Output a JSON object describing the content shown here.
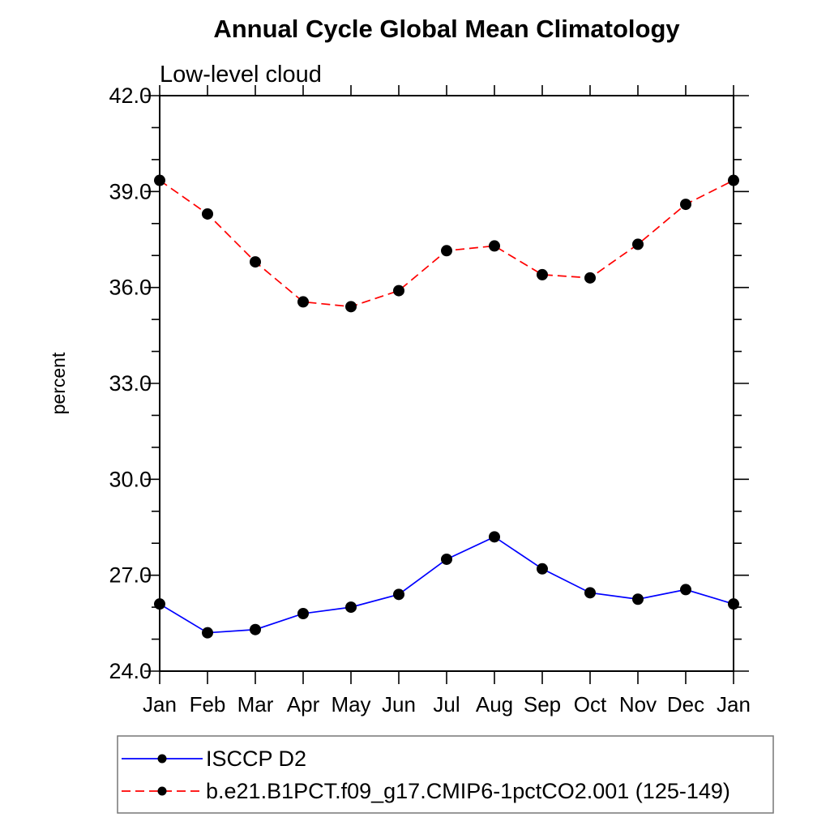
{
  "chart_data": {
    "type": "line",
    "title": "Annual Cycle Global Mean Climatology",
    "subtitle": "Low-level cloud",
    "ylabel": "percent",
    "categories": [
      "Jan",
      "Feb",
      "Mar",
      "Apr",
      "May",
      "Jun",
      "Jul",
      "Aug",
      "Sep",
      "Oct",
      "Nov",
      "Dec",
      "Jan"
    ],
    "ylim": [
      24.0,
      42.0
    ],
    "ytick_major_interval": 3.0,
    "ytick_minor_interval": 1.0,
    "ytick_labels": [
      "24.0",
      "27.0",
      "30.0",
      "33.0",
      "36.0",
      "39.0",
      "42.0"
    ],
    "grid": false,
    "legend_position": "bottom-left",
    "marker": "filled-circle",
    "marker_color": "#000000",
    "series": [
      {
        "name": "ISCCP D2",
        "color": "#0000ff",
        "line_style": "solid",
        "values": [
          26.1,
          25.2,
          25.3,
          25.8,
          26.0,
          26.4,
          27.5,
          28.2,
          27.2,
          26.45,
          26.25,
          26.55,
          26.1
        ]
      },
      {
        "name": "b.e21.B1PCT.f09_g17.CMIP6-1pctCO2.001 (125-149)",
        "color": "#ff0000",
        "line_style": "dashed",
        "values": [
          39.35,
          38.3,
          36.8,
          35.55,
          35.4,
          35.9,
          37.15,
          37.3,
          36.4,
          36.3,
          37.35,
          38.6,
          39.35
        ]
      }
    ]
  }
}
